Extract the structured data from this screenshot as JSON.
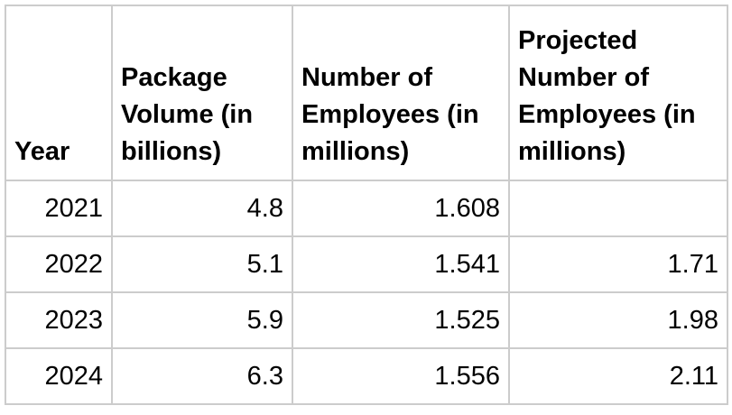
{
  "chart_data": {
    "type": "table",
    "title": "",
    "columns": [
      "Year",
      "Package Volume (in billions)",
      "Number of Employees (in millions)",
      "Projected Number of Employees (in millions)"
    ],
    "rows": [
      [
        "2021",
        "4.8",
        "1.608",
        ""
      ],
      [
        "2022",
        "5.1",
        "1.541",
        "1.71"
      ],
      [
        "2023",
        "5.9",
        "1.525",
        "1.98"
      ],
      [
        "2024",
        "6.3",
        "1.556",
        "2.11"
      ]
    ]
  },
  "colors": {
    "border": "#cccccc",
    "text": "#000000",
    "background": "#ffffff"
  }
}
